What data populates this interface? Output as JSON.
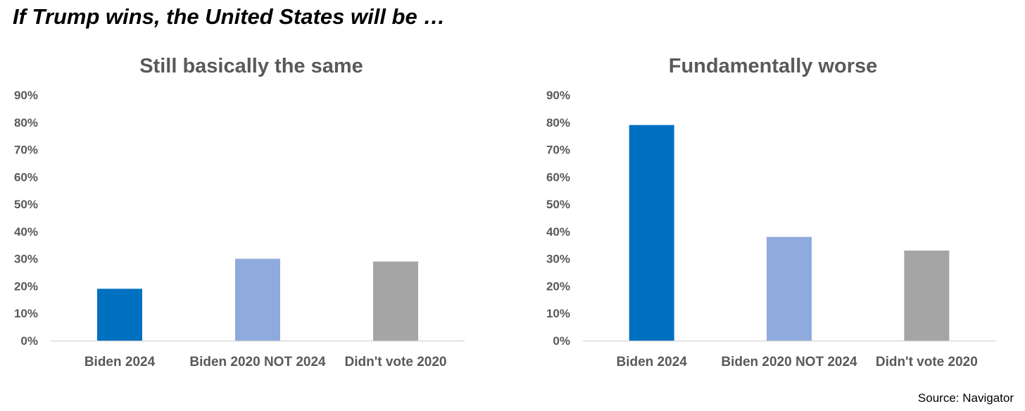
{
  "header": {
    "title": "If Trump wins, the United States will be …"
  },
  "footer": {
    "source": "Source: Navigator"
  },
  "chart_data": [
    {
      "type": "bar",
      "title": "Still basically the same",
      "categories": [
        "Biden 2024",
        "Biden 2020 NOT 2024",
        "Didn't vote 2020"
      ],
      "values": [
        19,
        30,
        29
      ],
      "colors": [
        "#0070C0",
        "#8FAADC",
        "#A5A5A5"
      ],
      "yticks": [
        "0%",
        "10%",
        "20%",
        "30%",
        "40%",
        "50%",
        "60%",
        "70%",
        "80%",
        "90%"
      ],
      "ylim": [
        0,
        90
      ],
      "xlabel": "",
      "ylabel": "",
      "grid": false,
      "legend": "none"
    },
    {
      "type": "bar",
      "title": "Fundamentally worse",
      "categories": [
        "Biden 2024",
        "Biden 2020 NOT 2024",
        "Didn't vote 2020"
      ],
      "values": [
        79,
        38,
        33
      ],
      "colors": [
        "#0070C0",
        "#8FAADC",
        "#A5A5A5"
      ],
      "yticks": [
        "0%",
        "10%",
        "20%",
        "30%",
        "40%",
        "50%",
        "60%",
        "70%",
        "80%",
        "90%"
      ],
      "ylim": [
        0,
        90
      ],
      "xlabel": "",
      "ylabel": "",
      "grid": false,
      "legend": "none"
    }
  ]
}
